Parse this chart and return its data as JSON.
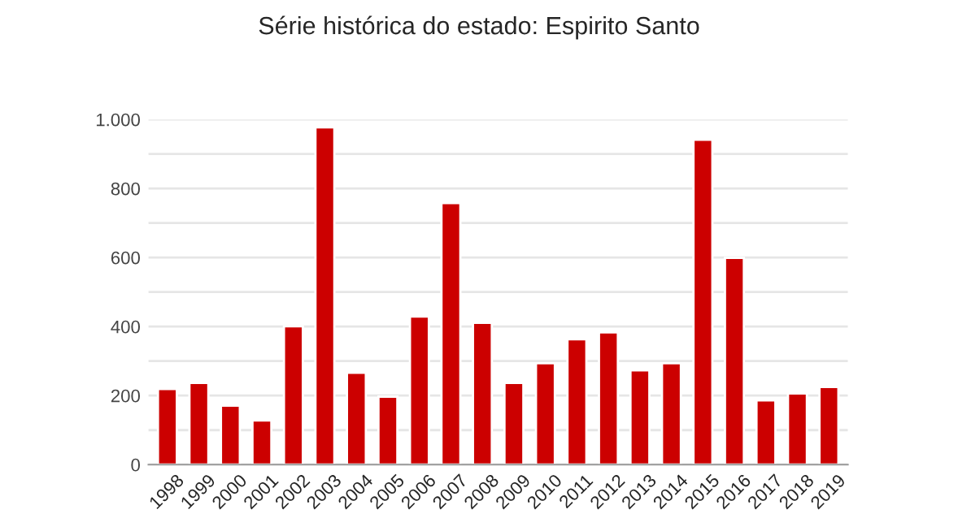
{
  "chart_data": {
    "type": "bar",
    "title": "Série histórica do estado: Espirito Santo",
    "categories": [
      "1998",
      "1999",
      "2000",
      "2001",
      "2002",
      "2003",
      "2004",
      "2005",
      "2006",
      "2007",
      "2008",
      "2009",
      "2010",
      "2011",
      "2012",
      "2013",
      "2014",
      "2015",
      "2016",
      "2017",
      "2018",
      "2019"
    ],
    "values": [
      219,
      237,
      171,
      128,
      401,
      977,
      266,
      197,
      429,
      758,
      411,
      237,
      294,
      363,
      383,
      273,
      294,
      941,
      599,
      186,
      206,
      225
    ],
    "color": "#cc0000",
    "ylim": [
      0,
      1000
    ],
    "yticks": [
      0,
      {
        "value": 100,
        "label": null
      },
      200,
      {
        "value": 300,
        "label": null
      },
      400,
      {
        "value": 500,
        "label": null
      },
      600,
      {
        "value": 700,
        "label": null
      },
      800,
      {
        "value": 900,
        "label": null
      },
      {
        "value": 1000,
        "label": "1.000"
      }
    ],
    "grid": "y"
  }
}
